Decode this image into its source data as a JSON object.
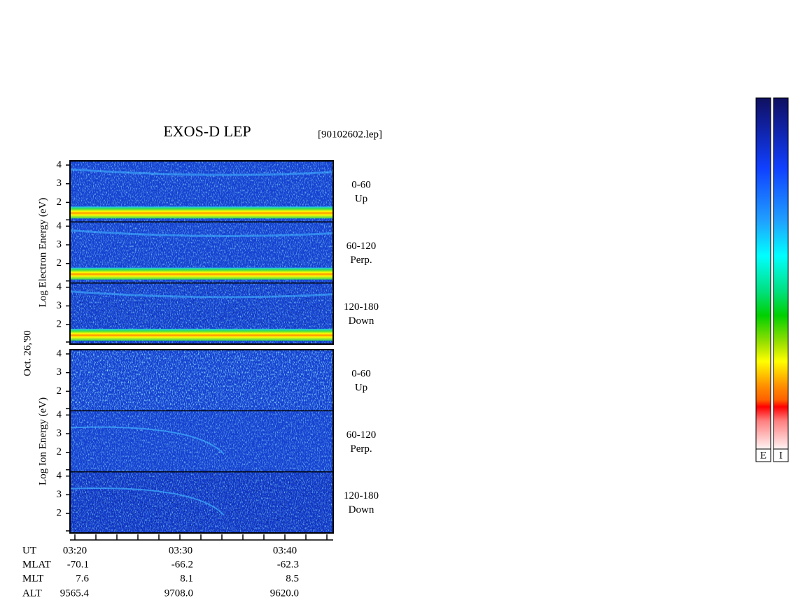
{
  "title": "EXOS-D LEP",
  "file_label": "[90102602.lep]",
  "date_label": "Oct. 26,'90",
  "yticks": [
    4,
    3,
    2
  ],
  "panels": [
    {
      "ylabel": "Log  Electron  Energy (eV)",
      "channels": [
        {
          "range": "0-60",
          "direction": "Up"
        },
        {
          "range": "60-120",
          "direction": "Perp."
        },
        {
          "range": "120-180",
          "direction": "Down"
        }
      ]
    },
    {
      "ylabel": "Log  Ion  Energy (eV)",
      "channels": [
        {
          "range": "0-60",
          "direction": "Up"
        },
        {
          "range": "60-120",
          "direction": "Perp."
        },
        {
          "range": "120-180",
          "direction": "Down"
        }
      ]
    }
  ],
  "time_axis": {
    "rows": [
      {
        "label": "UT",
        "values": [
          "03:20",
          "03:30",
          "03:40"
        ]
      },
      {
        "label": "MLAT",
        "values": [
          "-70.1",
          "-66.2",
          "-62.3"
        ]
      },
      {
        "label": "MLT",
        "values": [
          "7.6",
          "8.1",
          "8.5"
        ]
      },
      {
        "label": "ALT",
        "values": [
          "9565.4",
          "9708.0",
          "9620.0"
        ]
      }
    ]
  },
  "colorbars": [
    {
      "label": "E"
    },
    {
      "label": "I"
    }
  ]
}
